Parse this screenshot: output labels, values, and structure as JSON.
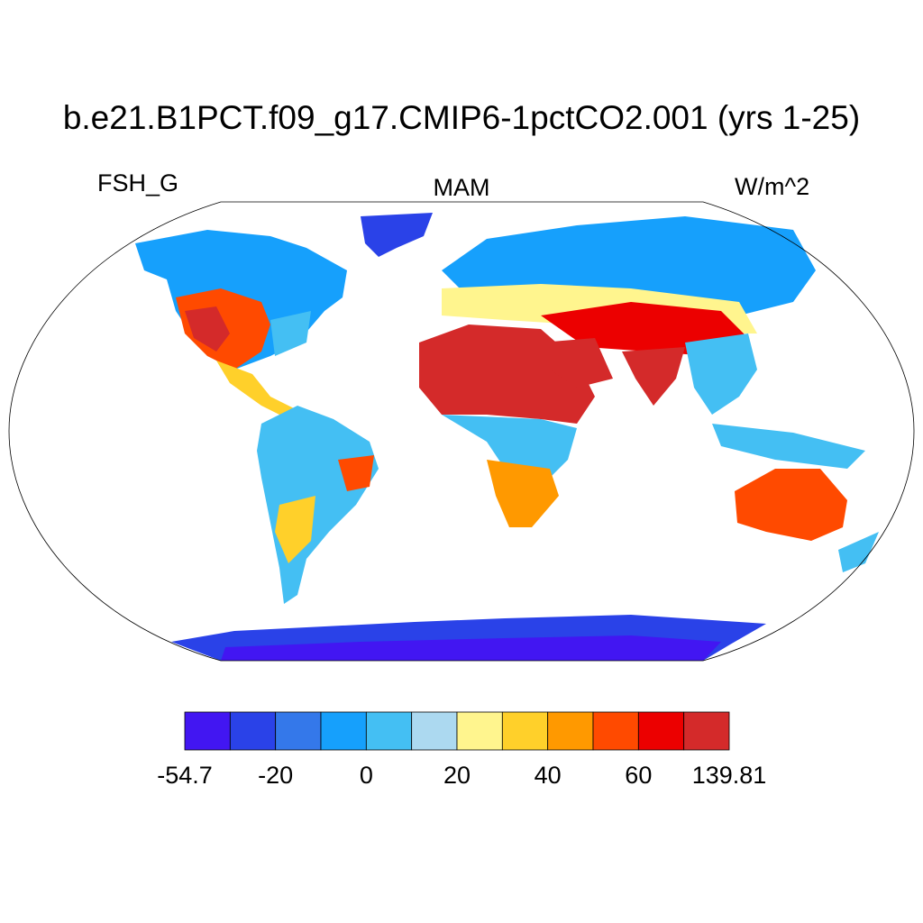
{
  "title": "b.e21.B1PCT.f09_g17.CMIP6-1pctCO2.001 (yrs 1-25)",
  "left_label": "FSH_G",
  "center_label": "MAM",
  "right_label": "W/m^2",
  "colorbar": {
    "colors": [
      "#4216f2",
      "#2a42e8",
      "#3478ea",
      "#16a0fc",
      "#44bff3",
      "#acd9f0",
      "#fff58e",
      "#ffd02a",
      "#ff9900",
      "#ff4a00",
      "#ec0000",
      "#d42a2a"
    ],
    "labels": [
      -54.7,
      -20,
      0,
      20,
      40,
      60,
      139.81
    ]
  }
}
